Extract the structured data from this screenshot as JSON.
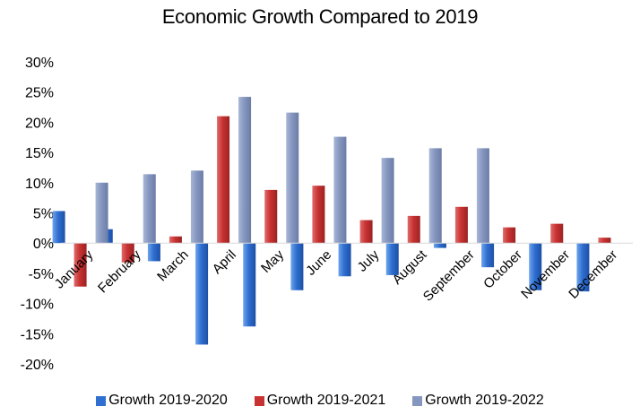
{
  "chart_data": {
    "type": "bar",
    "title": "Economic Growth Compared to 2019",
    "categories": [
      "January",
      "February",
      "March",
      "April",
      "May",
      "June",
      "July",
      "August",
      "September",
      "October",
      "November",
      "December"
    ],
    "series": [
      {
        "name": "Growth 2019-2020",
        "color": "#2f6fd0",
        "values": [
          5.3,
          2.3,
          -3.0,
          -16.8,
          -13.8,
          -7.8,
          -5.5,
          -5.3,
          -0.8,
          -4.0,
          -7.8,
          -8.0
        ]
      },
      {
        "name": "Growth 2019-2021",
        "color": "#c83232",
        "values": [
          -7.2,
          -3.2,
          1.1,
          21.0,
          8.8,
          9.5,
          3.8,
          4.5,
          6.0,
          2.6,
          3.2,
          0.9
        ]
      },
      {
        "name": "Growth 2019-2022",
        "color": "#8596bf",
        "values": [
          10.0,
          11.4,
          12.0,
          24.2,
          21.6,
          17.6,
          14.1,
          15.7,
          15.7,
          null,
          null,
          null
        ]
      }
    ],
    "ylim": [
      -20,
      30
    ],
    "yticks": [
      30,
      25,
      20,
      15,
      10,
      5,
      0,
      -5,
      -10,
      -15,
      -20
    ],
    "ytick_labels": [
      "30%",
      "25%",
      "20%",
      "15%",
      "10%",
      "5%",
      "0%",
      "-5%",
      "-10%",
      "-15%",
      "-20%"
    ],
    "xlabel": "",
    "ylabel": "",
    "grid": false,
    "legend_position": "bottom"
  }
}
